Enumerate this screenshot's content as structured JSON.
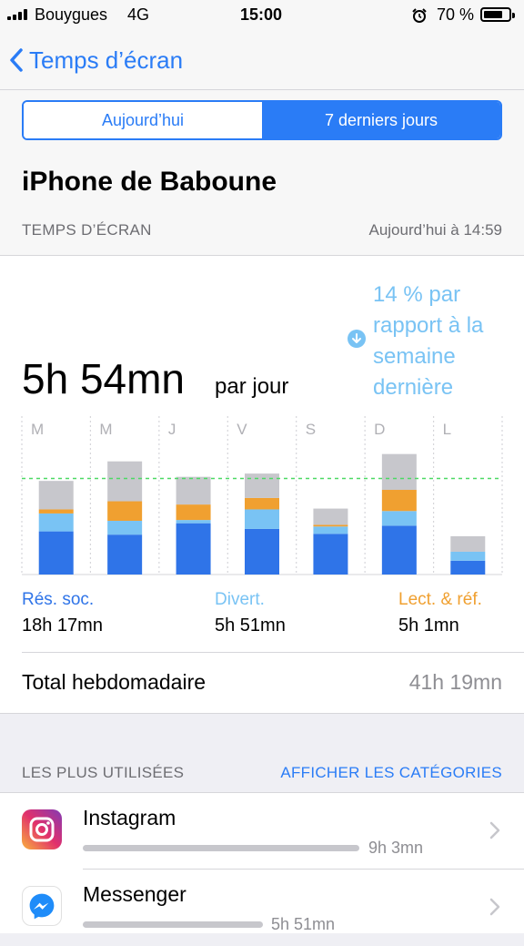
{
  "status_bar": {
    "carrier": "Bouygues",
    "network": "4G",
    "time": "15:00",
    "battery": "70 %"
  },
  "nav": {
    "back_label": "Temps d’écran"
  },
  "segmented": {
    "today": "Aujourd’hui",
    "week": "7 derniers jours",
    "selected": "week"
  },
  "device_name": "iPhone de Baboune",
  "section": {
    "title": "TEMPS D’ÉCRAN",
    "updated": "Aujourd’hui à 14:59"
  },
  "summary": {
    "average": "5h 54mn",
    "average_unit": "par jour",
    "comparison": "14 % par rapport à la semaine dernière",
    "comparison_direction": "down"
  },
  "colors": {
    "accent": "#2a7cf6",
    "social": "#2f74e8",
    "entertainment": "#79c3f4",
    "reading": "#f0a030",
    "other": "#c7c7cc",
    "average_line": "#4cd964"
  },
  "chart_data": {
    "type": "bar",
    "stacked": true,
    "categories": [
      "M",
      "M",
      "J",
      "V",
      "S",
      "D",
      "L"
    ],
    "unit": "hours",
    "series": [
      {
        "name": "Rés. soc.",
        "color": "#2f74e8",
        "values": [
          2.65,
          2.45,
          3.15,
          2.8,
          2.5,
          3.0,
          0.85
        ]
      },
      {
        "name": "Divert.",
        "color": "#79c3f4",
        "values": [
          1.1,
          0.85,
          0.2,
          1.2,
          0.45,
          0.9,
          0.55
        ]
      },
      {
        "name": "Lect. & réf.",
        "color": "#f0a030",
        "values": [
          0.25,
          1.2,
          0.95,
          0.7,
          0.1,
          1.3,
          0
        ]
      },
      {
        "name": "Autres",
        "color": "#c7c7cc",
        "values": [
          1.75,
          2.45,
          1.7,
          1.5,
          1.0,
          2.2,
          0.95
        ]
      }
    ],
    "average_line": 5.9,
    "ylim": [
      0,
      8.5
    ]
  },
  "categories_summary": [
    {
      "label": "Rés. soc.",
      "value": "18h 17mn",
      "color": "#2f74e8"
    },
    {
      "label": "Divert.",
      "value": "5h 51mn",
      "color": "#79c3f4"
    },
    {
      "label": "Lect. & réf.",
      "value": "5h 1mn",
      "color": "#f0a030"
    }
  ],
  "weekly_total": {
    "label": "Total hebdomadaire",
    "value": "41h 19mn"
  },
  "most_used": {
    "title": "LES PLUS UTILISÉES",
    "action": "AFFICHER LES CATÉGORIES",
    "apps": [
      {
        "name": "Instagram",
        "time": "9h 3mn",
        "usage_fraction": 1.0,
        "icon": "instagram-icon"
      },
      {
        "name": "Messenger",
        "time": "5h 51mn",
        "usage_fraction": 0.65,
        "icon": "messenger-icon"
      }
    ]
  }
}
